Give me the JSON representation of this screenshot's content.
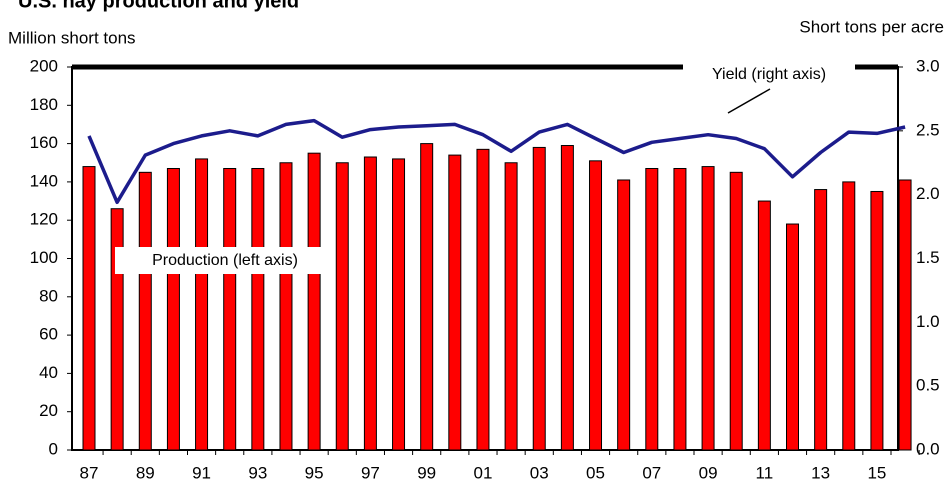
{
  "chart_data": {
    "type": "bar-line",
    "title": "U.S. hay production and yield",
    "y_label": "Million short tons",
    "y2_label": "Short tons per acre",
    "categories": [
      "87",
      null,
      "89",
      null,
      "91",
      null,
      "93",
      null,
      "95",
      null,
      "97",
      null,
      "99",
      null,
      "01",
      null,
      "03",
      null,
      "05",
      null,
      "07",
      null,
      "09",
      null,
      "11",
      null,
      "13",
      null,
      "15",
      null
    ],
    "series": [
      {
        "name": "Production (left axis)",
        "type": "bar",
        "color": "#ff0000",
        "values": [
          148,
          126,
          145,
          147,
          152,
          147,
          147,
          150,
          155,
          150,
          153,
          152,
          160,
          154,
          157,
          150,
          158,
          159,
          151,
          141,
          147,
          147,
          148,
          145,
          130,
          118,
          136,
          140,
          135,
          141
        ]
      },
      {
        "name": "Yield (right axis)",
        "type": "line",
        "axis": "y2",
        "color": "#1c1c8c",
        "values": [
          2.46,
          1.94,
          2.31,
          2.4,
          2.46,
          2.5,
          2.46,
          2.55,
          2.58,
          2.45,
          2.51,
          2.53,
          2.54,
          2.55,
          2.47,
          2.34,
          2.49,
          2.55,
          2.44,
          2.33,
          2.41,
          2.44,
          2.47,
          2.44,
          2.36,
          2.14,
          2.33,
          2.49,
          2.48,
          2.53
        ]
      }
    ],
    "ylim": [
      0,
      200
    ],
    "yticks": [
      0,
      20,
      40,
      60,
      80,
      100,
      120,
      140,
      160,
      180,
      200
    ],
    "y2lim": [
      0,
      3
    ],
    "y2ticks": [
      {
        "value": 0,
        "label": "0.0"
      },
      0.5,
      {
        "value": 1,
        "label": "1.0"
      },
      1.5,
      {
        "value": 2,
        "label": "2.0"
      },
      2.5,
      {
        "value": 3,
        "label": "3.0"
      }
    ]
  }
}
